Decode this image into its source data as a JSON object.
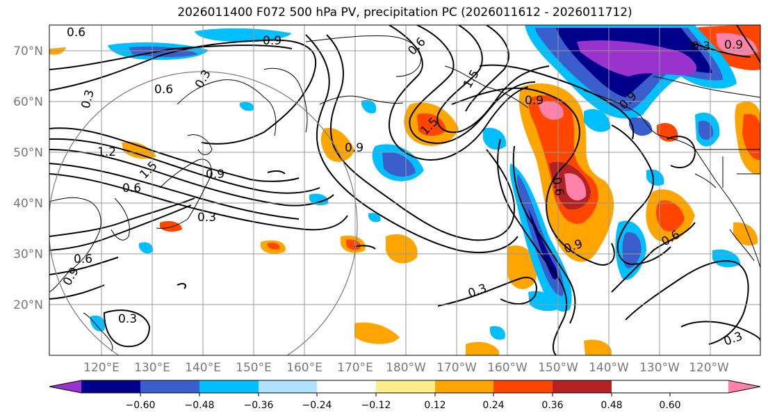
{
  "title": "2026011400 F072 500 hPa PV, precipitation PC (2026011612 - 2026011712)",
  "map": {
    "lat_labels": [
      "70°N",
      "60°N",
      "50°N",
      "40°N",
      "30°N",
      "20°N"
    ],
    "lon_labels": [
      "120°E",
      "130°E",
      "140°E",
      "150°E",
      "160°E",
      "170°E",
      "180°W",
      "170°W",
      "160°W",
      "150°W",
      "140°W",
      "130°W",
      "120°W"
    ],
    "pv_contour_labels": [
      "0.6",
      "0.9",
      "0.3",
      "0.6",
      "0.3",
      "0.9",
      "1.2",
      "1.5",
      "0.6",
      "0.9",
      "0.3",
      "0.6",
      "0.9",
      "0.3",
      "0.6",
      "1.5",
      "0.9",
      "1.5",
      "0.3",
      "0.6",
      "0.9",
      "0.9",
      "0.6",
      "0.3",
      "0.9",
      "0.3"
    ]
  },
  "colorbar": {
    "tick_labels": [
      "−0.60",
      "−0.48",
      "−0.36",
      "−0.24",
      "−0.12",
      "0.12",
      "0.24",
      "0.36",
      "0.48",
      "0.60"
    ],
    "colors": [
      "#9a32cd",
      "#00008b",
      "#3a5fcd",
      "#00bfff",
      "#b0e2ff",
      "#ffffff",
      "#ffec8b",
      "#ffa500",
      "#ff4500",
      "#b22222",
      "#ff82ab"
    ]
  }
}
